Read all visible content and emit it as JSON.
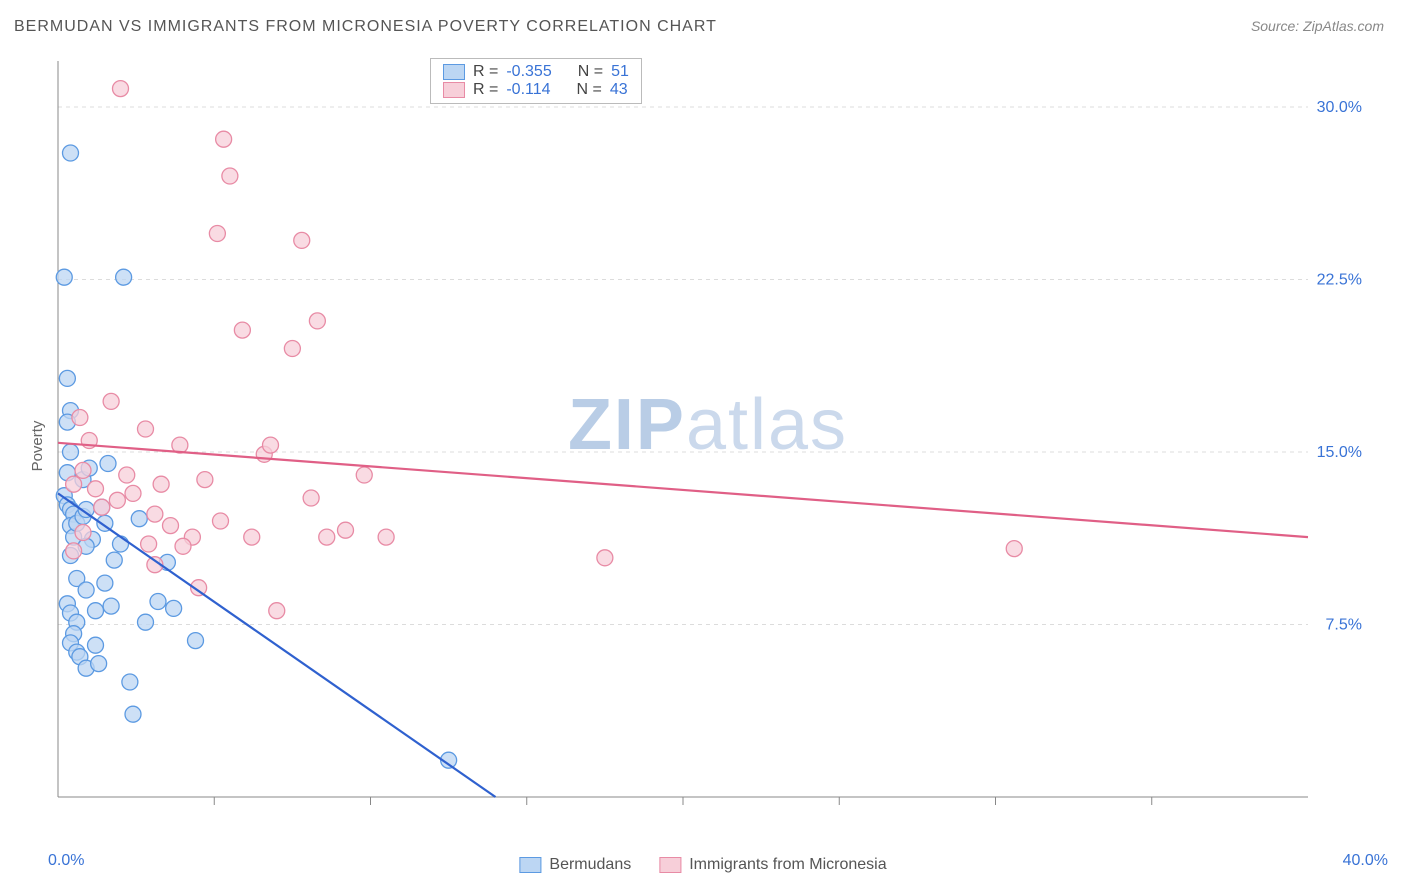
{
  "title": "BERMUDAN VS IMMIGRANTS FROM MICRONESIA POVERTY CORRELATION CHART",
  "source": "Source: ZipAtlas.com",
  "watermark": "ZIPatlas",
  "ylabel": "Poverty",
  "chart": {
    "type": "scatter",
    "xlim": [
      0,
      40
    ],
    "ylim": [
      0,
      32
    ],
    "xtick_step": 5,
    "ytick_step": 7.5,
    "xtick_labels": [
      "0.0%",
      "40.0%"
    ],
    "ytick_labels": [
      "7.5%",
      "15.0%",
      "22.5%",
      "30.0%"
    ],
    "grid_color": "#dcdcdc",
    "axis_color": "#888888",
    "tick_color": "#888888",
    "background_color": "#ffffff",
    "tick_label_color": "#3973d6",
    "ylabel_color": "#666666",
    "marker_radius": 8,
    "marker_stroke_width": 1.3,
    "trend_line_width": 2.2,
    "series": [
      {
        "name": "Bermudans",
        "fill": "#bcd6f3",
        "stroke": "#5c9ae2",
        "line_color": "#2f61cf",
        "R": "-0.355",
        "N": "51",
        "trend": {
          "x1": 0,
          "y1": 13.2,
          "x2": 14,
          "y2": 0
        },
        "points": [
          [
            0.2,
            22.6
          ],
          [
            0.4,
            28.0
          ],
          [
            0.3,
            18.2
          ],
          [
            0.4,
            16.8
          ],
          [
            0.3,
            16.3
          ],
          [
            0.4,
            15.0
          ],
          [
            0.3,
            14.1
          ],
          [
            0.2,
            13.1
          ],
          [
            0.3,
            12.7
          ],
          [
            0.4,
            12.5
          ],
          [
            0.5,
            12.3
          ],
          [
            0.4,
            11.8
          ],
          [
            0.5,
            11.3
          ],
          [
            0.4,
            10.5
          ],
          [
            0.6,
            9.5
          ],
          [
            0.3,
            8.4
          ],
          [
            0.4,
            8.0
          ],
          [
            0.6,
            7.6
          ],
          [
            0.5,
            7.1
          ],
          [
            0.4,
            6.7
          ],
          [
            0.6,
            6.3
          ],
          [
            0.6,
            11.9
          ],
          [
            0.8,
            12.2
          ],
          [
            0.8,
            13.8
          ],
          [
            0.9,
            9.0
          ],
          [
            0.9,
            12.5
          ],
          [
            1.0,
            14.3
          ],
          [
            1.1,
            11.2
          ],
          [
            1.2,
            8.1
          ],
          [
            1.4,
            12.6
          ],
          [
            1.5,
            11.9
          ],
          [
            1.6,
            14.5
          ],
          [
            1.7,
            8.3
          ],
          [
            1.8,
            10.3
          ],
          [
            2.1,
            22.6
          ],
          [
            2.6,
            12.1
          ],
          [
            2.8,
            7.6
          ],
          [
            3.2,
            8.5
          ],
          [
            3.7,
            8.2
          ],
          [
            4.4,
            6.8
          ],
          [
            2.3,
            5.0
          ],
          [
            2.4,
            3.6
          ],
          [
            12.5,
            1.6
          ],
          [
            0.7,
            6.1
          ],
          [
            0.9,
            5.6
          ],
          [
            0.9,
            10.9
          ],
          [
            1.3,
            5.8
          ],
          [
            3.5,
            10.2
          ],
          [
            1.2,
            6.6
          ],
          [
            1.5,
            9.3
          ],
          [
            2.0,
            11.0
          ]
        ]
      },
      {
        "name": "Immigrants from Micronesia",
        "fill": "#f7cfd9",
        "stroke": "#e88ba5",
        "line_color": "#e05f86",
        "R": "-0.114",
        "N": "43",
        "trend": {
          "x1": 0,
          "y1": 15.4,
          "x2": 40,
          "y2": 11.3
        },
        "points": [
          [
            0.5,
            13.6
          ],
          [
            0.7,
            16.5
          ],
          [
            0.8,
            14.2
          ],
          [
            1.0,
            15.5
          ],
          [
            1.2,
            13.4
          ],
          [
            1.4,
            12.6
          ],
          [
            1.7,
            17.2
          ],
          [
            1.9,
            12.9
          ],
          [
            2.2,
            14.0
          ],
          [
            2.4,
            13.2
          ],
          [
            2.8,
            16.0
          ],
          [
            3.1,
            12.3
          ],
          [
            3.3,
            13.6
          ],
          [
            3.6,
            11.8
          ],
          [
            3.9,
            15.3
          ],
          [
            4.3,
            11.3
          ],
          [
            4.7,
            13.8
          ],
          [
            5.1,
            24.5
          ],
          [
            5.3,
            28.6
          ],
          [
            5.5,
            27.0
          ],
          [
            5.9,
            20.3
          ],
          [
            6.6,
            14.9
          ],
          [
            6.8,
            15.3
          ],
          [
            7.5,
            19.5
          ],
          [
            7.8,
            24.2
          ],
          [
            8.1,
            13.0
          ],
          [
            8.3,
            20.7
          ],
          [
            8.6,
            11.3
          ],
          [
            9.2,
            11.6
          ],
          [
            9.8,
            14.0
          ],
          [
            10.5,
            11.3
          ],
          [
            2.0,
            30.8
          ],
          [
            2.9,
            11.0
          ],
          [
            4.0,
            10.9
          ],
          [
            3.1,
            10.1
          ],
          [
            6.2,
            11.3
          ],
          [
            7.0,
            8.1
          ],
          [
            17.5,
            10.4
          ],
          [
            30.6,
            10.8
          ],
          [
            4.5,
            9.1
          ],
          [
            5.2,
            12.0
          ],
          [
            0.5,
            10.7
          ],
          [
            0.8,
            11.5
          ]
        ]
      }
    ]
  },
  "legend_top": {
    "r_label": "R =",
    "n_label": "N ="
  },
  "legend_bottom": [
    "Bermudans",
    "Immigrants from Micronesia"
  ]
}
